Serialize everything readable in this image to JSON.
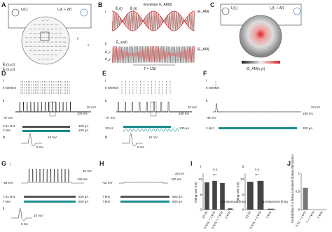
{
  "A": {
    "letter": "A",
    "source1": "I₁(f₁)",
    "source2": "I₂(f₁ + Δf)",
    "legend1": "Ê₁(x,y,t)",
    "legend2": "Ê₂(x,y,t)",
    "x": "x",
    "y": "y"
  },
  "B": {
    "letter": "B",
    "i": "i",
    "ii": "ii",
    "envelope": "Envelope E_AM(t)",
    "e1": "Ê₁(t)",
    "e2": "Ê₂(t)",
    "eam": "|E_AM|",
    "ex": "Ê_x",
    "ey": "Ê_y",
    "exy": "Ê_xy(t)",
    "eam2": "|E_AM|",
    "period": "T = 1/Δf"
  },
  "C": {
    "letter": "C",
    "source1": "I₁(f₁)",
    "source2": "I₂(f₁ + Δf)",
    "colorbar": "|E_AM(x,y)|"
  },
  "D": {
    "letter": "D",
    "i": "i",
    "sweeps": "5 sweeps",
    "ii": "ii",
    "sv": "20 mV",
    "st": "100 ms",
    "vm": "-47 mV",
    "f1": "2.01 kHz",
    "f2": "2 kHz",
    "i1": "100 μA",
    "i2": "100 μA",
    "iii": "iii",
    "sv3": "10 mV",
    "st3": "5 ms"
  },
  "E": {
    "letter": "E",
    "i": "i",
    "sweeps": "5 sweeps",
    "ii": "ii",
    "sv": "20 mV",
    "st": "100 ms",
    "vm": "-47 mV",
    "f1": "10 Hz",
    "i1": "100 μA",
    "iii": "iii",
    "sv3": "10 mV",
    "st3": "5 ms"
  },
  "F": {
    "letter": "F",
    "i": "i",
    "sweeps": "5 sweeps",
    "ii": "ii",
    "sv": "20 mV",
    "st": "100 ms",
    "vm": "-48 mV",
    "f1": "2 kHz",
    "i1": "200 μA"
  },
  "G": {
    "letter": "G",
    "i": "i",
    "vm": "-64 mV",
    "sv": "20 mV",
    "st": "100 ms",
    "f1": "7.01 kHz",
    "f2": "7 kHz",
    "i1": "600 μA",
    "i2": "600 μA",
    "ii": "ii",
    "sv2": "10 mV",
    "st2": "5 ms"
  },
  "H": {
    "letter": "H",
    "vm": "-62 mV",
    "sv": "20 mV",
    "st": "100 ms",
    "f1": "7 kHz",
    "f2": "7 kHz",
    "i1": "600 μA",
    "i2": "600 μA"
  },
  "I": {
    "letter": "I",
    "ylabel": "Firing rate (Hz)",
    "i": {
      "label": "i",
      "categories": [
        "10 Hz",
        "2.01 kHz + 2 kHz",
        "7.01 kHz + 7 kHz",
        "2 kHz"
      ],
      "values": [
        9,
        9.5,
        8.8,
        0.4
      ],
      "ylim": [
        0,
        12
      ],
      "yticks": [
        0,
        5,
        10
      ],
      "note": "spontaneous firing",
      "sig": "***",
      "ns": "n.s."
    },
    "ii": {
      "label": "ii",
      "categories": [
        "10 Hz",
        "2.01 kHz + 2 kHz",
        "2 kHz"
      ],
      "values": [
        9.2,
        9.5,
        0.3
      ],
      "ylim": [
        0,
        12
      ],
      "yticks": [
        0,
        5,
        10
      ],
      "note": "spontaneous firing",
      "sig": "***",
      "ns": "n.s."
    }
  },
  "J": {
    "letter": "J",
    "ylabel": "Probability of a firing sustained during stimulation",
    "categories": [
      "2.01 + 2 kHz",
      "7 + 7 kHz",
      "2 kHz"
    ],
    "values": [
      0.6,
      0,
      0
    ],
    "ylim": [
      0,
      1
    ],
    "yticks": [
      0,
      0.5,
      1
    ]
  }
}
